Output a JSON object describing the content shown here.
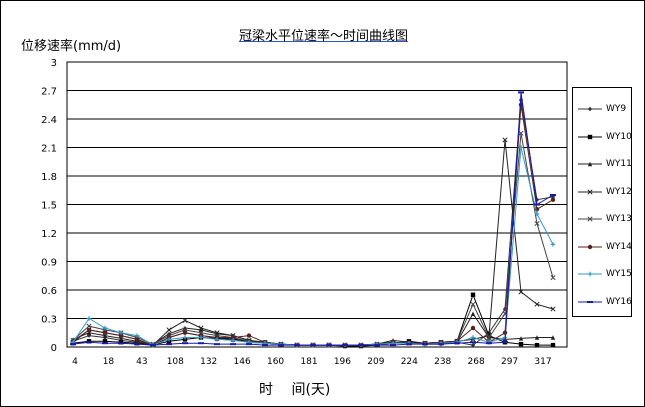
{
  "chart_data": {
    "type": "line",
    "title": "冠梁水平位速率～时间曲线图",
    "ylabel": "位移速率(mm/d)",
    "xlabel": "时 间(天)",
    "ylim": [
      0,
      3
    ],
    "yticks": [
      "0",
      "0.3",
      "0.6",
      "0.9",
      "1.2",
      "1.5",
      "1.8",
      "2.1",
      "2.4",
      "2.7",
      "3"
    ],
    "x_tick_labels": [
      "4",
      "18",
      "43",
      "108",
      "132",
      "146",
      "160",
      "181",
      "196",
      "209",
      "224",
      "238",
      "268",
      "297",
      "317"
    ],
    "grid": "horizontal",
    "legend_position": "right",
    "x": [
      4,
      11,
      18,
      24,
      31,
      43,
      108,
      118,
      132,
      139,
      146,
      153,
      160,
      170,
      181,
      188,
      196,
      203,
      209,
      216,
      224,
      231,
      238,
      253,
      268,
      283,
      297,
      307,
      317,
      322,
      327
    ],
    "series": [
      {
        "name": "WY9",
        "color": "#333333",
        "marker": "diamond",
        "values": [
          0.06,
          0.12,
          0.1,
          0.07,
          0.05,
          0.02,
          0.1,
          0.15,
          0.12,
          0.1,
          0.09,
          0.05,
          0.04,
          0.03,
          0.02,
          0.02,
          0.02,
          0.02,
          0.02,
          0.03,
          0.04,
          0.05,
          0.03,
          0.03,
          0.05,
          0.02,
          0.15,
          0.4,
          2.6,
          1.55,
          1.58
        ]
      },
      {
        "name": "WY10",
        "color": "#000000",
        "marker": "square",
        "values": [
          0.04,
          0.06,
          0.06,
          0.05,
          0.04,
          0.02,
          0.06,
          0.08,
          0.1,
          0.09,
          0.08,
          0.06,
          0.04,
          0.03,
          0.02,
          0.02,
          0.02,
          0.01,
          0.01,
          0.02,
          0.04,
          0.06,
          0.04,
          0.05,
          0.06,
          0.55,
          0.12,
          0.05,
          0.03,
          0.02,
          0.02
        ]
      },
      {
        "name": "WY11",
        "color": "#222222",
        "marker": "triangle",
        "values": [
          0.08,
          0.15,
          0.12,
          0.09,
          0.06,
          0.03,
          0.14,
          0.2,
          0.18,
          0.14,
          0.12,
          0.07,
          0.05,
          0.03,
          0.02,
          0.02,
          0.02,
          0.02,
          0.02,
          0.03,
          0.07,
          0.05,
          0.04,
          0.04,
          0.05,
          0.35,
          0.1,
          0.08,
          0.09,
          0.1,
          0.1
        ]
      },
      {
        "name": "WY12",
        "color": "#222222",
        "marker": "x",
        "values": [
          0.05,
          0.18,
          0.15,
          0.12,
          0.08,
          0.02,
          0.18,
          0.28,
          0.2,
          0.15,
          0.12,
          0.07,
          0.05,
          0.03,
          0.02,
          0.02,
          0.02,
          0.02,
          0.02,
          0.03,
          0.05,
          0.04,
          0.04,
          0.05,
          0.06,
          0.08,
          0.12,
          2.18,
          0.58,
          0.45,
          0.4
        ]
      },
      {
        "name": "WY13",
        "color": "#444444",
        "marker": "x",
        "values": [
          0.07,
          0.22,
          0.18,
          0.15,
          0.1,
          0.03,
          0.12,
          0.18,
          0.15,
          0.12,
          0.1,
          0.06,
          0.04,
          0.03,
          0.02,
          0.02,
          0.02,
          0.02,
          0.02,
          0.03,
          0.05,
          0.04,
          0.04,
          0.05,
          0.06,
          0.45,
          0.1,
          0.35,
          2.25,
          1.3,
          0.73
        ]
      },
      {
        "name": "WY14",
        "color": "#552222",
        "marker": "circle",
        "values": [
          0.06,
          0.18,
          0.15,
          0.12,
          0.08,
          0.02,
          0.1,
          0.15,
          0.12,
          0.1,
          0.1,
          0.12,
          0.05,
          0.03,
          0.02,
          0.02,
          0.02,
          0.02,
          0.02,
          0.03,
          0.05,
          0.04,
          0.04,
          0.05,
          0.06,
          0.2,
          0.05,
          0.15,
          2.55,
          1.45,
          1.55
        ]
      },
      {
        "name": "WY15",
        "color": "#3399cc",
        "marker": "plus",
        "values": [
          0.05,
          0.3,
          0.2,
          0.15,
          0.12,
          0.02,
          0.08,
          0.1,
          0.1,
          0.08,
          0.07,
          0.05,
          0.04,
          0.03,
          0.02,
          0.02,
          0.02,
          0.02,
          0.02,
          0.03,
          0.04,
          0.04,
          0.03,
          0.04,
          0.05,
          0.1,
          0.05,
          0.1,
          2.1,
          1.4,
          1.08
        ]
      },
      {
        "name": "WY16",
        "color": "#1a1aaa",
        "marker": "bar",
        "values": [
          0.03,
          0.05,
          0.04,
          0.04,
          0.03,
          0.02,
          0.03,
          0.04,
          0.04,
          0.03,
          0.03,
          0.03,
          0.02,
          0.02,
          0.02,
          0.02,
          0.02,
          0.02,
          0.02,
          0.02,
          0.02,
          0.03,
          0.03,
          0.03,
          0.04,
          0.05,
          0.04,
          0.05,
          2.68,
          1.5,
          1.6
        ]
      }
    ]
  }
}
